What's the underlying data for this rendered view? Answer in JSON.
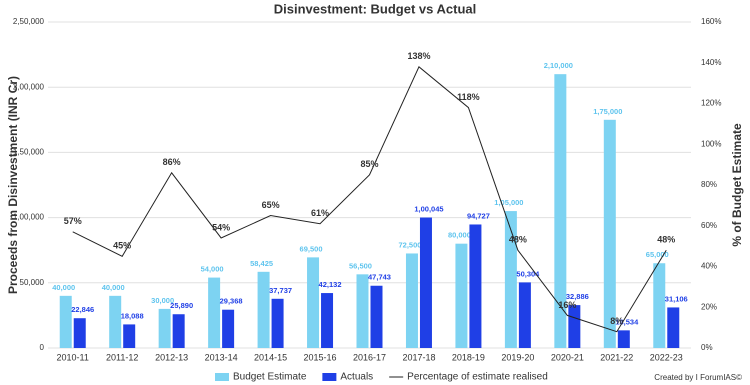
{
  "chart_data": {
    "type": "bar",
    "title": "Disinvestment: Budget vs Actual",
    "y_label": "Proceeds from Disinvestment (INR Cr)",
    "y2_label": "% of Budget Estimate",
    "categories": [
      "2010-11",
      "2011-12",
      "2012-13",
      "2013-14",
      "2014-15",
      "2015-16",
      "2016-17",
      "2017-18",
      "2018-19",
      "2019-20",
      "2020-21",
      "2021-22",
      "2022-23"
    ],
    "series": [
      {
        "name": "Budget Estimate",
        "type": "bar",
        "color": "#7dd3f2",
        "label_color": "#5ec4ee",
        "values": [
          40000,
          40000,
          30000,
          54000,
          58425,
          69500,
          56500,
          72500,
          80000,
          105000,
          210000,
          175000,
          65000
        ],
        "value_labels": [
          "40,000",
          "40,000",
          "30,000",
          "54,000",
          "58,425",
          "69,500",
          "56,500",
          "72,500",
          "80,000",
          "1,05,000",
          "2,10,000",
          "1,75,000",
          "65,000"
        ]
      },
      {
        "name": "Actuals",
        "type": "bar",
        "color": "#1f3fe6",
        "label_color": "#1f3fe6",
        "values": [
          22846,
          18088,
          25890,
          29368,
          37737,
          42132,
          47743,
          100045,
          94727,
          50304,
          32886,
          13534,
          31106
        ],
        "value_labels": [
          "22,846",
          "18,088",
          "25,890",
          "29,368",
          "37,737",
          "42,132",
          "47,743",
          "1,00,045",
          "94,727",
          "50,304",
          "32,886",
          "13,534",
          "31,106"
        ]
      },
      {
        "name": "Percentage of estimate realised",
        "type": "line",
        "axis": "y2",
        "color": "#222222",
        "label_color": "#333333",
        "values": [
          57,
          45,
          86,
          54,
          65,
          61,
          85,
          138,
          118,
          48,
          16,
          8,
          48
        ],
        "value_labels": [
          "57%",
          "45%",
          "86%",
          "54%",
          "65%",
          "61%",
          "85%",
          "138%",
          "118%",
          "48%",
          "16%",
          "8%",
          "48%"
        ]
      }
    ],
    "ylim": [
      0,
      250000
    ],
    "yticks": [
      0,
      {
        "value": 50000,
        "label": "50,000"
      },
      {
        "value": 100000,
        "label": "1,00,000"
      },
      {
        "value": 150000,
        "label": "1,50,000"
      },
      {
        "value": 200000,
        "label": "2,00,000"
      },
      {
        "value": 250000,
        "label": "2,50,000"
      }
    ],
    "y2lim": [
      0,
      160
    ],
    "y2ticks": [
      {
        "value": 0,
        "label": "0%"
      },
      {
        "value": 20,
        "label": "20%"
      },
      {
        "value": 40,
        "label": "40%"
      },
      {
        "value": 60,
        "label": "60%"
      },
      {
        "value": 80,
        "label": "80%"
      },
      {
        "value": 100,
        "label": "100%"
      },
      {
        "value": 120,
        "label": "120%"
      },
      {
        "value": 140,
        "label": "140%"
      },
      {
        "value": 160,
        "label": "160%"
      }
    ],
    "grid": true,
    "legend": "bottom",
    "credit": "Created by I ForumIAS©"
  }
}
